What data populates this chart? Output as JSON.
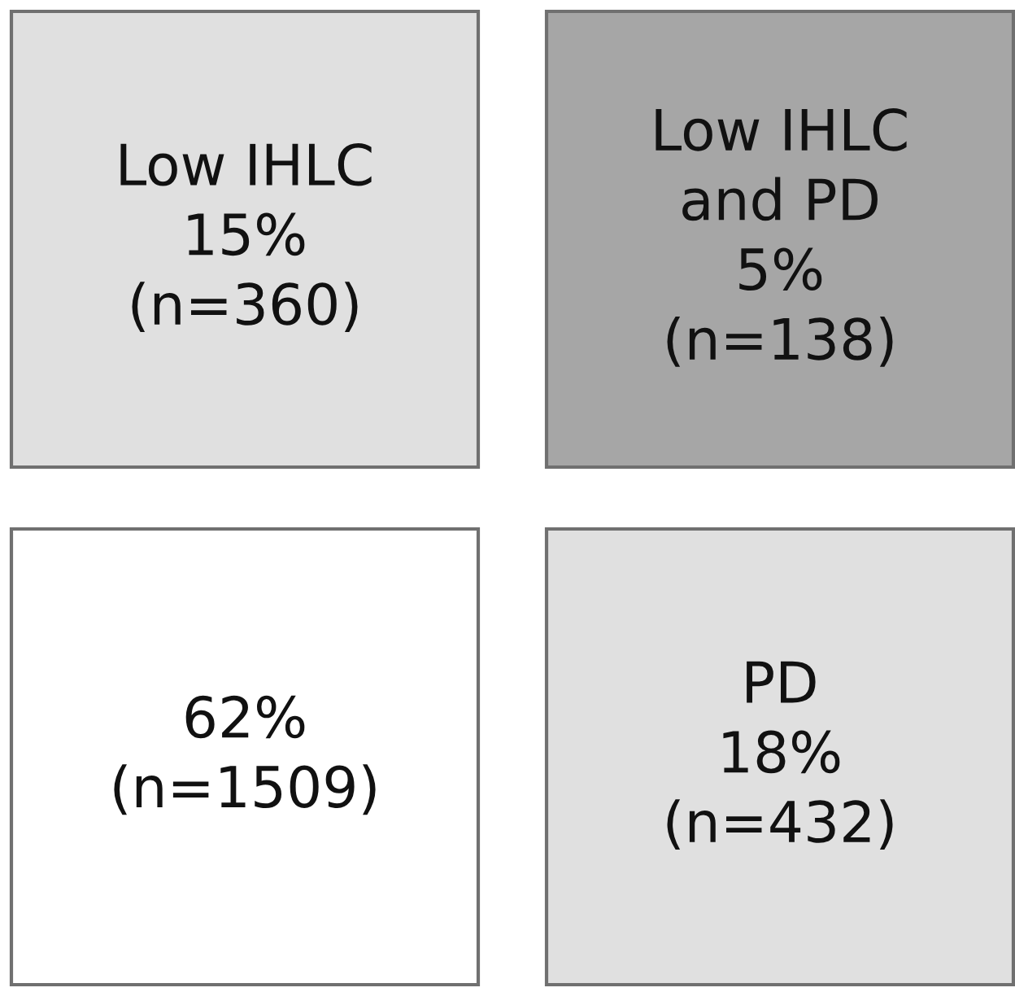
{
  "chart_data": {
    "type": "other",
    "categories": [
      "Low IHLC",
      "Low IHLC\nand PD",
      null,
      "PD"
    ],
    "values": [
      15,
      5,
      62,
      18
    ],
    "value_labels": [
      "15%\n(n=360)",
      "5%\n(n=138)",
      "62%\n(n=1509)",
      "18%\n(n=432)"
    ],
    "colors": [
      "#e0e0e0",
      "#a6a6a6",
      "#ffffff",
      "#e0e0e0"
    ]
  }
}
